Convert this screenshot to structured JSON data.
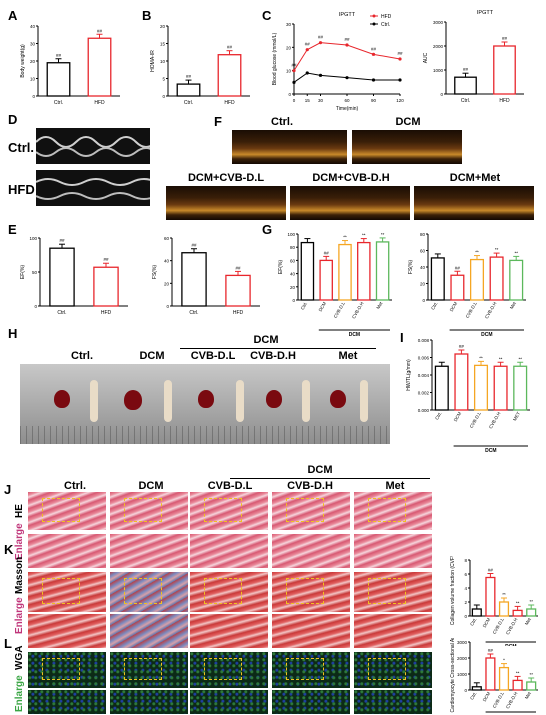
{
  "panels": {
    "A": "A",
    "B": "B",
    "C": "C",
    "D": "D",
    "E": "E",
    "F": "F",
    "G": "G",
    "H": "H",
    "I": "I",
    "J": "J",
    "K": "K",
    "L": "L"
  },
  "groups": {
    "ctrl": "Ctrl.",
    "hfd": "HFD",
    "dcm": "DCM",
    "cvb_l": "CVB-D.L",
    "cvb_h": "CVB-D.H",
    "met": "Met",
    "dcm_cvb_l": "DCM+CVB-D.L",
    "dcm_cvb_h": "DCM+CVB-D.H",
    "dcm_met": "DCM+Met",
    "met_caps": "MET"
  },
  "rows": {
    "he": "HE",
    "enlarge": "Enlarge",
    "masson": "Masson",
    "wga": "WGA"
  },
  "colors": {
    "ctrl": "#000000",
    "hfd": "#e8262c",
    "dcm": "#e8262c",
    "cvb_l": "#f5a623",
    "cvb_h": "#e8262c",
    "met": "#5cb85c"
  },
  "chart_data": [
    {
      "type": "bar",
      "panel": "A",
      "categories": [
        "Ctrl.",
        "HFD"
      ],
      "values": [
        19,
        33
      ],
      "ylabel": "Body weight(g)",
      "ylim": [
        0,
        40
      ],
      "yticks": [
        "0",
        "10",
        "20",
        "30",
        "40"
      ],
      "annotations": [
        "##"
      ]
    },
    {
      "type": "bar",
      "panel": "B",
      "categories": [
        "Ctrl.",
        "HFD"
      ],
      "values": [
        3.4,
        11.8
      ],
      "ylabel": "HOMA-IR",
      "ylim": [
        0,
        20
      ],
      "yticks": [
        "0",
        "5",
        "10",
        "15",
        "20"
      ],
      "annotations": [
        "##"
      ]
    },
    {
      "type": "line",
      "panel": "C",
      "title": "IPGTT",
      "x": [
        0,
        15,
        30,
        60,
        90,
        120
      ],
      "xlabel": "Time(min)",
      "ylabel": "Blood glucose (mmol/L)",
      "ylim": [
        0,
        30
      ],
      "yticks": [
        "0",
        "10",
        "20",
        "30"
      ],
      "xticks": [
        "0",
        "15",
        "30",
        "60",
        "90",
        "120"
      ],
      "series": [
        {
          "name": "HFD",
          "values": [
            10,
            19,
            22,
            21,
            17,
            15
          ]
        },
        {
          "name": "Ctrl.",
          "values": [
            5,
            9,
            8,
            7,
            6,
            6
          ]
        }
      ],
      "annotations": [
        "##",
        "##",
        "##",
        "##",
        "##",
        "##"
      ]
    },
    {
      "type": "bar",
      "panel": "C2",
      "title": "IPGTT",
      "categories": [
        "Ctrl.",
        "HFD"
      ],
      "values": [
        700,
        2000
      ],
      "ylabel": "AUC",
      "ylim": [
        0,
        3000
      ],
      "yticks": [
        "0",
        "1000",
        "2000",
        "3000"
      ],
      "annotations": [
        "##"
      ]
    },
    {
      "type": "bar",
      "panel": "E1",
      "categories": [
        "Ctrl.",
        "HFD"
      ],
      "values": [
        85,
        57
      ],
      "ylabel": "EF(%)",
      "ylim": [
        0,
        100
      ],
      "yticks": [
        "0",
        "50",
        "100"
      ],
      "annotations": [
        "##"
      ]
    },
    {
      "type": "bar",
      "panel": "E2",
      "categories": [
        "Ctrl.",
        "HFD"
      ],
      "values": [
        47,
        27
      ],
      "ylabel": "FS(%)",
      "ylim": [
        0,
        60
      ],
      "yticks": [
        "0",
        "20",
        "40",
        "60"
      ],
      "annotations": [
        "##"
      ]
    },
    {
      "type": "bar",
      "panel": "G1",
      "categories": [
        "Ctrl.",
        "DCM",
        "CVB-D.L",
        "CVB-D.H",
        "Met"
      ],
      "values": [
        87,
        60,
        84,
        87,
        88
      ],
      "ylabel": "EF(%)",
      "ylim": [
        0,
        100
      ],
      "yticks": [
        "0",
        "20",
        "40",
        "60",
        "80",
        "100"
      ],
      "annotations": [
        "",
        "##",
        "**",
        "**",
        "**"
      ],
      "group_label": "DCM"
    },
    {
      "type": "bar",
      "panel": "G2",
      "categories": [
        "Ctrl.",
        "DCM",
        "CVB-D.L",
        "CVB-D.H",
        "Met"
      ],
      "values": [
        51,
        30,
        49,
        52,
        48
      ],
      "ylabel": "FS(%)",
      "ylim": [
        0,
        80
      ],
      "yticks": [
        "0",
        "20",
        "40",
        "60",
        "80"
      ],
      "annotations": [
        "",
        "##",
        "**",
        "**",
        "**"
      ],
      "group_label": "DCM"
    },
    {
      "type": "bar",
      "panel": "I",
      "categories": [
        "Ctrl.",
        "DCM",
        "CVB-D.L",
        "CVB-D.H",
        "MET"
      ],
      "values": [
        0.005,
        0.0064,
        0.0051,
        0.005,
        0.005
      ],
      "ylabel": "HW/TL(g/mm)",
      "ylim": [
        0,
        0.008
      ],
      "yticks": [
        "0.000",
        "0.002",
        "0.004",
        "0.006",
        "0.008"
      ],
      "annotations": [
        "",
        "##",
        "**",
        "**",
        "**"
      ],
      "group_label": "DCM"
    },
    {
      "type": "bar",
      "panel": "K",
      "categories": [
        "Ctrl.",
        "DCM",
        "CVB-D.L",
        "CVB-D.H",
        "Met"
      ],
      "values": [
        1,
        5.5,
        2,
        0.8,
        1
      ],
      "ylabel": "Collagen volume fraction (CVF%)",
      "ylim": [
        0,
        8
      ],
      "yticks": [
        "0",
        "2",
        "4",
        "6",
        "8"
      ],
      "annotations": [
        "",
        "##",
        "**",
        "**",
        "**"
      ],
      "group_label": "DCM"
    },
    {
      "type": "bar",
      "panel": "L",
      "categories": [
        "Ctrl.",
        "DCM",
        "CVB-D.L",
        "CVB-D.H",
        "Met"
      ],
      "values": [
        200,
        2000,
        1400,
        600,
        500
      ],
      "ylabel": "Cardiomyocyte Cross-sectional Area(μm²)",
      "ylim": [
        0,
        3000
      ],
      "yticks": [
        "0",
        "1000",
        "2000",
        "3000"
      ],
      "annotations": [
        "",
        "##",
        "*",
        "**",
        "**"
      ],
      "group_label": "DCM"
    }
  ]
}
